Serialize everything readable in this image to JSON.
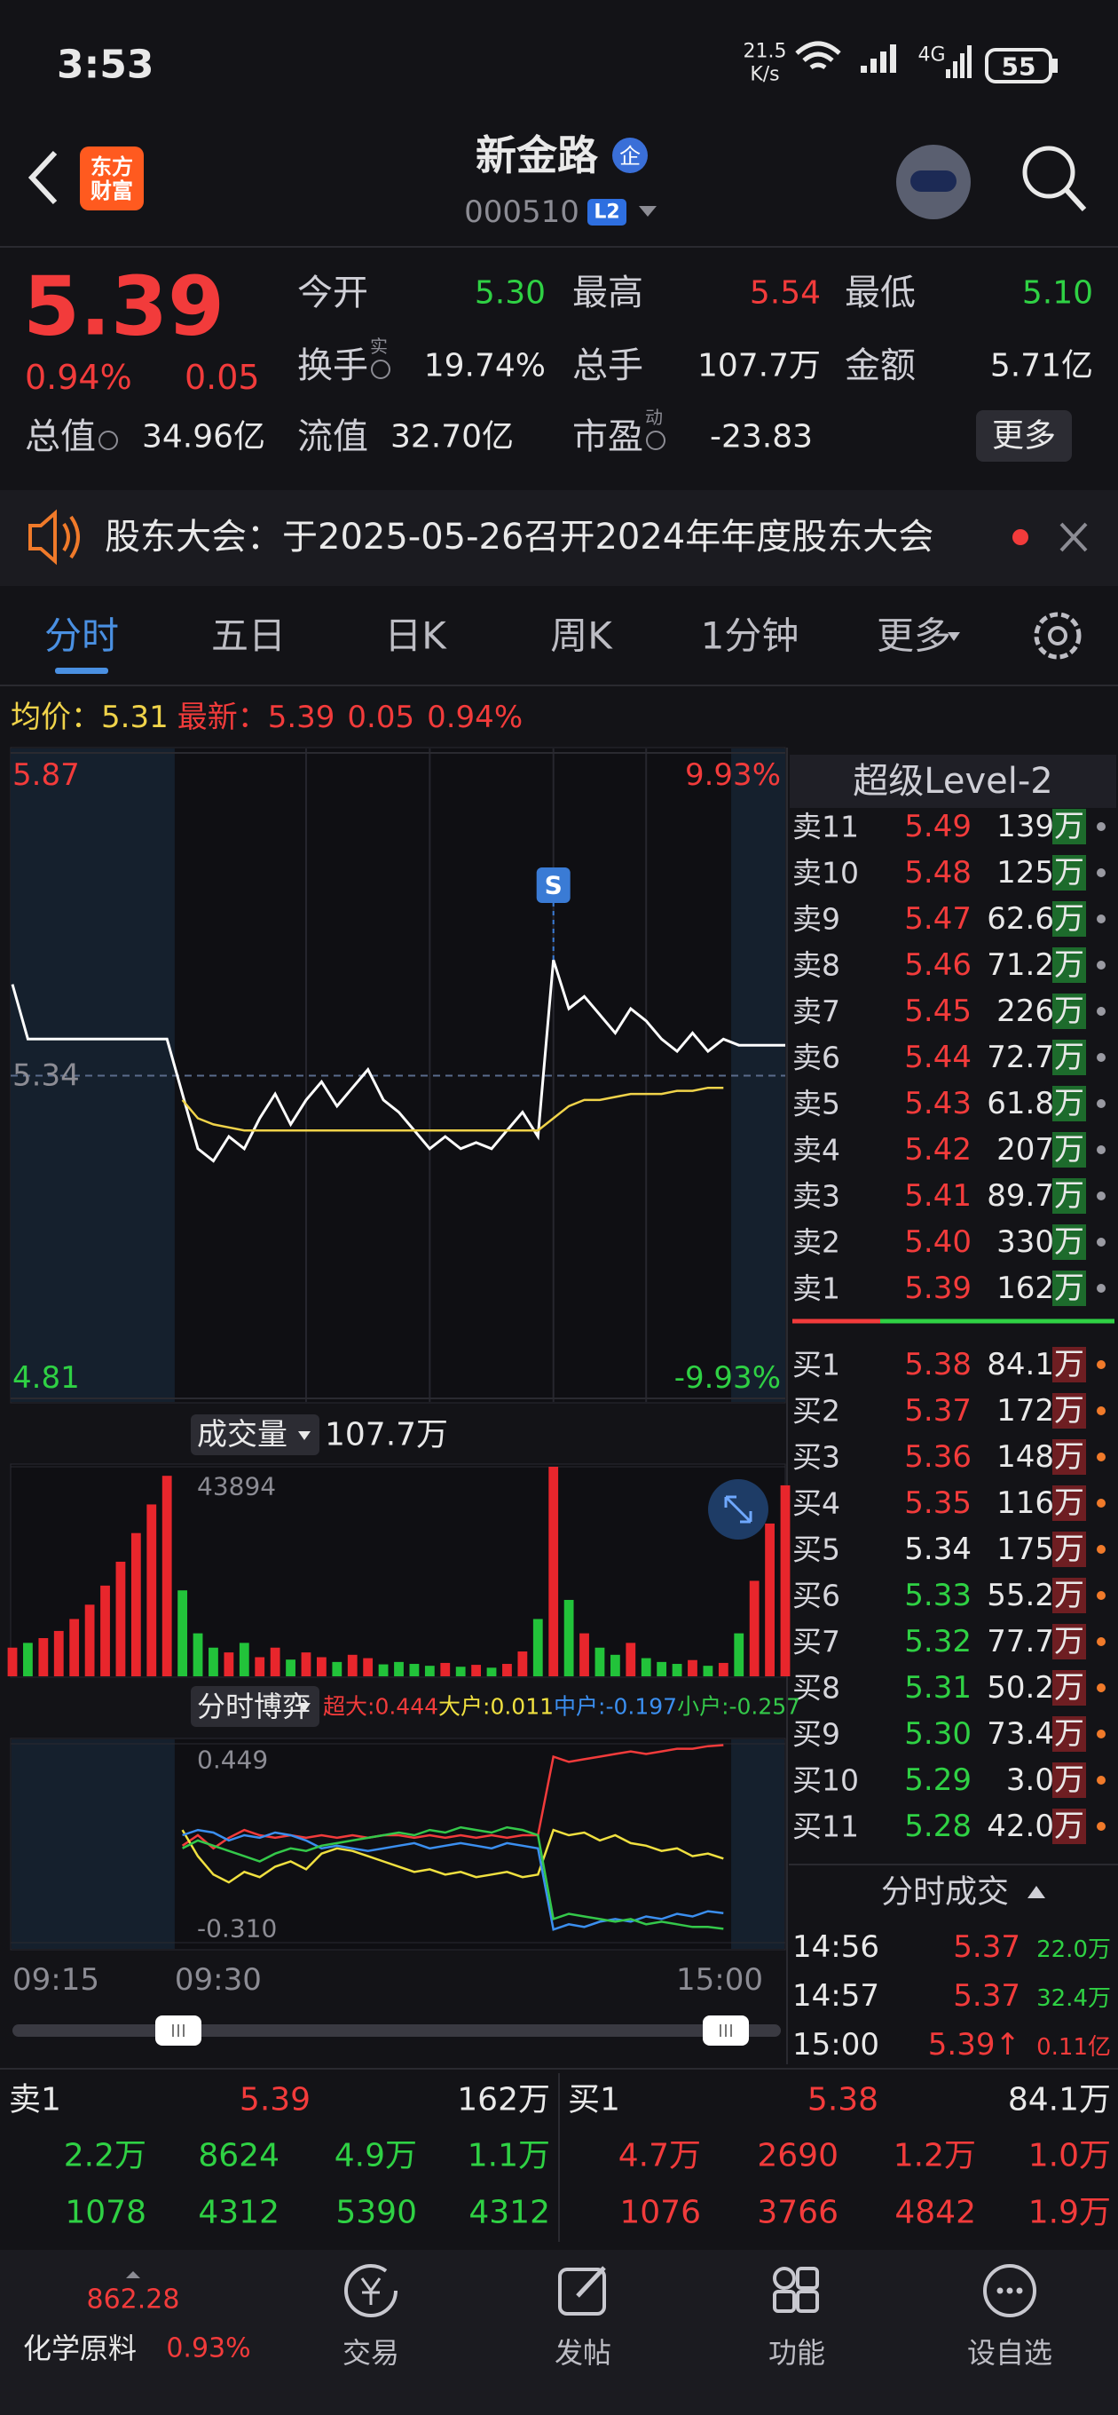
{
  "status_bar": {
    "time": "3:53",
    "net_speed": "21.5",
    "net_unit": "K/s",
    "network": "4G",
    "battery": "55"
  },
  "header": {
    "logo": [
      "东方",
      "财富"
    ],
    "title": "新金路",
    "badge": "企",
    "code": "000510",
    "level": "L2"
  },
  "quote": {
    "price": "5.39",
    "change_pct": "0.94%",
    "change": "0.05",
    "fields": [
      {
        "label": "今开",
        "value": "5.30",
        "tone": "down"
      },
      {
        "label": "最高",
        "value": "5.54",
        "tone": "up"
      },
      {
        "label": "最低",
        "value": "5.10",
        "tone": "down"
      },
      {
        "label": "换手",
        "sup": "实",
        "value": "19.74%",
        "tone": "flat"
      },
      {
        "label": "总手",
        "value": "107.7万",
        "tone": "flat"
      },
      {
        "label": "金额",
        "value": "5.71亿",
        "tone": "flat"
      },
      {
        "label": "总值",
        "value": "34.96亿",
        "tone": "flat"
      },
      {
        "label": "流值",
        "value": "32.70亿",
        "tone": "flat"
      },
      {
        "label": "市盈",
        "sup": "动",
        "value": "-23.83",
        "tone": "flat"
      }
    ],
    "more": "更多"
  },
  "notice": {
    "text": "股东大会：于2025-05-26召开2024年年度股东大会"
  },
  "tabs": {
    "items": [
      "分时",
      "五日",
      "日K",
      "周K",
      "1分钟",
      "更多"
    ],
    "active": 0
  },
  "info": {
    "avg_label": "均价：",
    "avg": "5.31",
    "last_label": "最新：",
    "last": "5.39",
    "change": "0.05",
    "change_pct": "0.94%"
  },
  "intraday": {
    "ylim": [
      4.81,
      5.87
    ],
    "yticks": [
      5.87,
      5.34,
      4.81
    ],
    "pct_labels": [
      "9.93%",
      "-9.93%"
    ],
    "signal": "S",
    "price": {
      "color": "#ffffff",
      "values": [
        5.49,
        5.4,
        5.4,
        5.4,
        5.4,
        5.4,
        5.4,
        5.4,
        5.4,
        5.4,
        5.4,
        5.31,
        5.22,
        5.2,
        5.24,
        5.22,
        5.27,
        5.31,
        5.26,
        5.3,
        5.33,
        5.29,
        5.32,
        5.35,
        5.3,
        5.28,
        5.25,
        5.22,
        5.24,
        5.22,
        5.23,
        5.22,
        5.25,
        5.28,
        5.24,
        5.53,
        5.45,
        5.47,
        5.44,
        5.41,
        5.45,
        5.43,
        5.4,
        5.38,
        5.41,
        5.38,
        5.4,
        5.39,
        5.39,
        5.39,
        5.39
      ]
    },
    "avg": {
      "color": "#f0d34a",
      "values": [
        null,
        null,
        null,
        null,
        null,
        null,
        null,
        null,
        null,
        null,
        null,
        5.3,
        5.27,
        5.26,
        5.255,
        5.25,
        5.25,
        5.25,
        5.25,
        5.25,
        5.25,
        5.25,
        5.25,
        5.25,
        5.25,
        5.25,
        5.25,
        5.25,
        5.25,
        5.25,
        5.25,
        5.25,
        5.25,
        5.25,
        5.25,
        5.27,
        5.29,
        5.3,
        5.3,
        5.305,
        5.31,
        5.31,
        5.31,
        5.315,
        5.315,
        5.32,
        5.32,
        null,
        null,
        null,
        null
      ]
    }
  },
  "volume": {
    "button": "成交量",
    "total": "107.7万",
    "ylim": [
      0,
      43894
    ],
    "yticks": [
      43894
    ],
    "up_color": "#e8262c",
    "down_color": "#22c33a",
    "values": [
      6000,
      7000,
      8000,
      9500,
      12000,
      15000,
      19000,
      24000,
      30000,
      36000,
      42000,
      18000,
      9000,
      6000,
      5000,
      7000,
      4000,
      6000,
      3500,
      5000,
      4000,
      3000,
      4500,
      3800,
      2500,
      3000,
      2600,
      2200,
      2800,
      2000,
      2400,
      1800,
      2600,
      5200,
      12000,
      43894,
      16000,
      9000,
      6000,
      4500,
      7000,
      3800,
      3000,
      2600,
      3400,
      2200,
      2800,
      9000,
      20000,
      32000,
      40000
    ]
  },
  "fund": {
    "button": "分时博弈",
    "ylim": [
      -0.31,
      0.449
    ],
    "yticks": [
      0.449,
      {
        "value": -0.31,
        "label": "-0.310"
      }
    ],
    "series": [
      {
        "name": "超大:",
        "label": "0.444",
        "color": "#f23b3b",
        "values": [
          null,
          null,
          null,
          null,
          null,
          null,
          null,
          null,
          null,
          null,
          null,
          0.06,
          0.1,
          0.05,
          0.09,
          0.12,
          0.1,
          0.09,
          0.1,
          0.09,
          0.1,
          0.09,
          0.1,
          0.09,
          0.1,
          0.1,
          0.09,
          0.1,
          0.09,
          0.1,
          0.09,
          0.1,
          0.09,
          0.1,
          0.1,
          0.4,
          0.38,
          0.39,
          0.4,
          0.41,
          0.42,
          0.41,
          0.42,
          0.43,
          0.43,
          0.44,
          0.444,
          null,
          null,
          null,
          null
        ]
      },
      {
        "name": "大户:",
        "label": "0.011",
        "color": "#f0e040",
        "values": [
          null,
          null,
          null,
          null,
          null,
          null,
          null,
          null,
          null,
          null,
          null,
          0.12,
          0.02,
          -0.05,
          -0.08,
          -0.04,
          -0.06,
          -0.02,
          0.0,
          -0.03,
          0.03,
          0.05,
          0.04,
          0.02,
          0.0,
          -0.02,
          -0.04,
          -0.03,
          -0.05,
          -0.04,
          -0.06,
          -0.05,
          -0.04,
          -0.06,
          -0.05,
          0.12,
          0.1,
          0.11,
          0.08,
          0.1,
          0.07,
          0.06,
          0.04,
          0.05,
          0.02,
          0.03,
          0.011,
          null,
          null,
          null,
          null
        ]
      },
      {
        "name": "中户:",
        "label": "-0.197",
        "color": "#3b8ff0",
        "values": [
          null,
          null,
          null,
          null,
          null,
          null,
          null,
          null,
          null,
          null,
          null,
          0.1,
          0.12,
          0.11,
          0.08,
          0.1,
          0.09,
          0.11,
          0.1,
          0.08,
          0.05,
          0.06,
          0.05,
          0.04,
          0.05,
          0.06,
          0.07,
          0.05,
          0.06,
          0.07,
          0.06,
          0.05,
          0.07,
          0.06,
          0.05,
          -0.26,
          -0.24,
          -0.25,
          -0.23,
          -0.22,
          -0.23,
          -0.21,
          -0.22,
          -0.2,
          -0.21,
          -0.19,
          -0.197,
          null,
          null,
          null,
          null
        ]
      },
      {
        "name": "小户:",
        "label": "-0.257",
        "color": "#34c84a",
        "values": [
          null,
          null,
          null,
          null,
          null,
          null,
          null,
          null,
          null,
          null,
          null,
          0.05,
          0.08,
          0.06,
          0.04,
          0.02,
          0.0,
          0.03,
          0.05,
          0.04,
          0.06,
          0.07,
          0.08,
          0.09,
          0.1,
          0.11,
          0.1,
          0.12,
          0.11,
          0.13,
          0.12,
          0.11,
          0.13,
          0.12,
          0.1,
          -0.22,
          -0.2,
          -0.21,
          -0.22,
          -0.23,
          -0.22,
          -0.24,
          -0.23,
          -0.24,
          -0.25,
          -0.25,
          -0.257,
          null,
          null,
          null,
          null
        ]
      }
    ]
  },
  "time_axis": {
    "labels": [
      "09:15",
      "09:30",
      "15:00"
    ]
  },
  "order_book": {
    "title": "超级Level-2",
    "sell": [
      {
        "label": "卖11",
        "price": "5.49",
        "volume": "139万"
      },
      {
        "label": "卖10",
        "price": "5.48",
        "volume": "125万"
      },
      {
        "label": "卖9",
        "price": "5.47",
        "volume": "62.6万"
      },
      {
        "label": "卖8",
        "price": "5.46",
        "volume": "71.2万"
      },
      {
        "label": "卖7",
        "price": "5.45",
        "volume": "226万"
      },
      {
        "label": "卖6",
        "price": "5.44",
        "volume": "72.7万"
      },
      {
        "label": "卖5",
        "price": "5.43",
        "volume": "61.8万"
      },
      {
        "label": "卖4",
        "price": "5.42",
        "volume": "207万"
      },
      {
        "label": "卖3",
        "price": "5.41",
        "volume": "89.7万"
      },
      {
        "label": "卖2",
        "price": "5.40",
        "volume": "330万"
      },
      {
        "label": "卖1",
        "price": "5.39",
        "volume": "162万"
      }
    ],
    "buy": [
      {
        "label": "买1",
        "price": "5.38",
        "volume": "84.1万"
      },
      {
        "label": "买2",
        "price": "5.37",
        "volume": "172万"
      },
      {
        "label": "买3",
        "price": "5.36",
        "volume": "148万"
      },
      {
        "label": "买4",
        "price": "5.35",
        "volume": "116万"
      },
      {
        "label": "买5",
        "price": "5.34",
        "volume": "175万"
      },
      {
        "label": "买6",
        "price": "5.33",
        "volume": "55.2万"
      },
      {
        "label": "买7",
        "price": "5.32",
        "volume": "77.7万"
      },
      {
        "label": "买8",
        "price": "5.31",
        "volume": "50.2万"
      },
      {
        "label": "买9",
        "price": "5.30",
        "volume": "73.4万"
      },
      {
        "label": "买10",
        "price": "5.29",
        "volume": "3.0万"
      },
      {
        "label": "买11",
        "price": "5.28",
        "volume": "42.0万"
      }
    ]
  },
  "trades": {
    "title": "分时成交",
    "rows": [
      {
        "time": "14:56",
        "price": "5.37",
        "volume": "22.0万",
        "tone": "down"
      },
      {
        "time": "14:57",
        "price": "5.37",
        "volume": "32.4万",
        "tone": "down"
      },
      {
        "time": "15:00",
        "price": "5.39↑",
        "volume": "0.11亿",
        "tone": "up"
      }
    ]
  },
  "depth": {
    "sell": {
      "label": "卖1",
      "price": "5.39",
      "volume": "162万",
      "rows": [
        [
          "2.2万",
          "8624",
          "4.9万",
          "1.1万"
        ],
        [
          "1078",
          "4312",
          "5390",
          "4312"
        ]
      ]
    },
    "buy": {
      "label": "买1",
      "price": "5.38",
      "volume": "84.1万",
      "rows": [
        [
          "4.7万",
          "2690",
          "1.2万",
          "1.0万"
        ],
        [
          "1076",
          "3766",
          "4842",
          "1.9万"
        ]
      ]
    }
  },
  "nav": {
    "index": {
      "value": "862.28",
      "name": "化学原料",
      "change": "0.93%"
    },
    "items": [
      "交易",
      "发帖",
      "功能",
      "设自选"
    ]
  }
}
